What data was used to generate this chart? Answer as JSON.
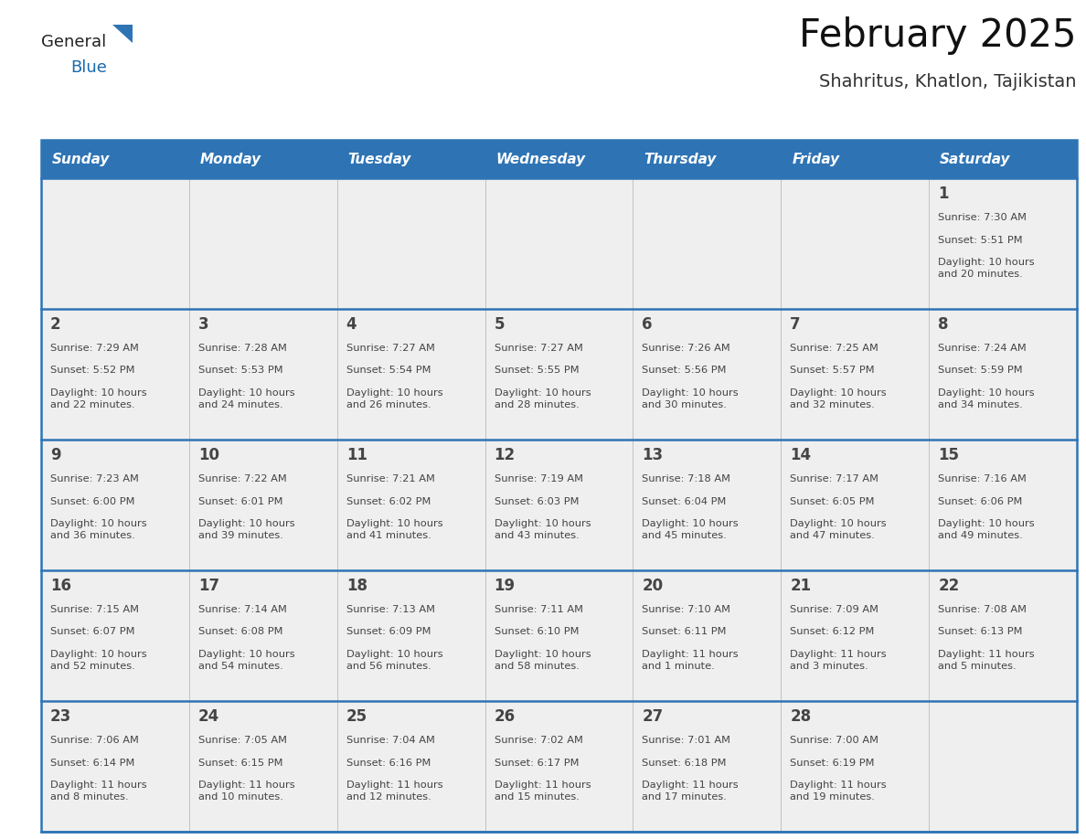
{
  "title": "February 2025",
  "subtitle": "Shahritus, Khatlon, Tajikistan",
  "header_bg": "#2E74B5",
  "header_text": "#FFFFFF",
  "row_bg": "#EFEFEF",
  "border_color": "#2E74B5",
  "text_color": "#444444",
  "days_of_week": [
    "Sunday",
    "Monday",
    "Tuesday",
    "Wednesday",
    "Thursday",
    "Friday",
    "Saturday"
  ],
  "calendar_data": [
    [
      {
        "day": null,
        "sunrise": null,
        "sunset": null,
        "daylight": null
      },
      {
        "day": null,
        "sunrise": null,
        "sunset": null,
        "daylight": null
      },
      {
        "day": null,
        "sunrise": null,
        "sunset": null,
        "daylight": null
      },
      {
        "day": null,
        "sunrise": null,
        "sunset": null,
        "daylight": null
      },
      {
        "day": null,
        "sunrise": null,
        "sunset": null,
        "daylight": null
      },
      {
        "day": null,
        "sunrise": null,
        "sunset": null,
        "daylight": null
      },
      {
        "day": 1,
        "sunrise": "7:30 AM",
        "sunset": "5:51 PM",
        "daylight": "10 hours\nand 20 minutes."
      }
    ],
    [
      {
        "day": 2,
        "sunrise": "7:29 AM",
        "sunset": "5:52 PM",
        "daylight": "10 hours\nand 22 minutes."
      },
      {
        "day": 3,
        "sunrise": "7:28 AM",
        "sunset": "5:53 PM",
        "daylight": "10 hours\nand 24 minutes."
      },
      {
        "day": 4,
        "sunrise": "7:27 AM",
        "sunset": "5:54 PM",
        "daylight": "10 hours\nand 26 minutes."
      },
      {
        "day": 5,
        "sunrise": "7:27 AM",
        "sunset": "5:55 PM",
        "daylight": "10 hours\nand 28 minutes."
      },
      {
        "day": 6,
        "sunrise": "7:26 AM",
        "sunset": "5:56 PM",
        "daylight": "10 hours\nand 30 minutes."
      },
      {
        "day": 7,
        "sunrise": "7:25 AM",
        "sunset": "5:57 PM",
        "daylight": "10 hours\nand 32 minutes."
      },
      {
        "day": 8,
        "sunrise": "7:24 AM",
        "sunset": "5:59 PM",
        "daylight": "10 hours\nand 34 minutes."
      }
    ],
    [
      {
        "day": 9,
        "sunrise": "7:23 AM",
        "sunset": "6:00 PM",
        "daylight": "10 hours\nand 36 minutes."
      },
      {
        "day": 10,
        "sunrise": "7:22 AM",
        "sunset": "6:01 PM",
        "daylight": "10 hours\nand 39 minutes."
      },
      {
        "day": 11,
        "sunrise": "7:21 AM",
        "sunset": "6:02 PM",
        "daylight": "10 hours\nand 41 minutes."
      },
      {
        "day": 12,
        "sunrise": "7:19 AM",
        "sunset": "6:03 PM",
        "daylight": "10 hours\nand 43 minutes."
      },
      {
        "day": 13,
        "sunrise": "7:18 AM",
        "sunset": "6:04 PM",
        "daylight": "10 hours\nand 45 minutes."
      },
      {
        "day": 14,
        "sunrise": "7:17 AM",
        "sunset": "6:05 PM",
        "daylight": "10 hours\nand 47 minutes."
      },
      {
        "day": 15,
        "sunrise": "7:16 AM",
        "sunset": "6:06 PM",
        "daylight": "10 hours\nand 49 minutes."
      }
    ],
    [
      {
        "day": 16,
        "sunrise": "7:15 AM",
        "sunset": "6:07 PM",
        "daylight": "10 hours\nand 52 minutes."
      },
      {
        "day": 17,
        "sunrise": "7:14 AM",
        "sunset": "6:08 PM",
        "daylight": "10 hours\nand 54 minutes."
      },
      {
        "day": 18,
        "sunrise": "7:13 AM",
        "sunset": "6:09 PM",
        "daylight": "10 hours\nand 56 minutes."
      },
      {
        "day": 19,
        "sunrise": "7:11 AM",
        "sunset": "6:10 PM",
        "daylight": "10 hours\nand 58 minutes."
      },
      {
        "day": 20,
        "sunrise": "7:10 AM",
        "sunset": "6:11 PM",
        "daylight": "11 hours\nand 1 minute."
      },
      {
        "day": 21,
        "sunrise": "7:09 AM",
        "sunset": "6:12 PM",
        "daylight": "11 hours\nand 3 minutes."
      },
      {
        "day": 22,
        "sunrise": "7:08 AM",
        "sunset": "6:13 PM",
        "daylight": "11 hours\nand 5 minutes."
      }
    ],
    [
      {
        "day": 23,
        "sunrise": "7:06 AM",
        "sunset": "6:14 PM",
        "daylight": "11 hours\nand 8 minutes."
      },
      {
        "day": 24,
        "sunrise": "7:05 AM",
        "sunset": "6:15 PM",
        "daylight": "11 hours\nand 10 minutes."
      },
      {
        "day": 25,
        "sunrise": "7:04 AM",
        "sunset": "6:16 PM",
        "daylight": "11 hours\nand 12 minutes."
      },
      {
        "day": 26,
        "sunrise": "7:02 AM",
        "sunset": "6:17 PM",
        "daylight": "11 hours\nand 15 minutes."
      },
      {
        "day": 27,
        "sunrise": "7:01 AM",
        "sunset": "6:18 PM",
        "daylight": "11 hours\nand 17 minutes."
      },
      {
        "day": 28,
        "sunrise": "7:00 AM",
        "sunset": "6:19 PM",
        "daylight": "11 hours\nand 19 minutes."
      },
      {
        "day": null,
        "sunrise": null,
        "sunset": null,
        "daylight": null
      }
    ]
  ],
  "logo_color_general": "#222222",
  "logo_color_blue": "#1a6aad",
  "logo_triangle_color": "#2E74B5",
  "fig_width": 11.88,
  "fig_height": 9.18,
  "dpi": 100
}
